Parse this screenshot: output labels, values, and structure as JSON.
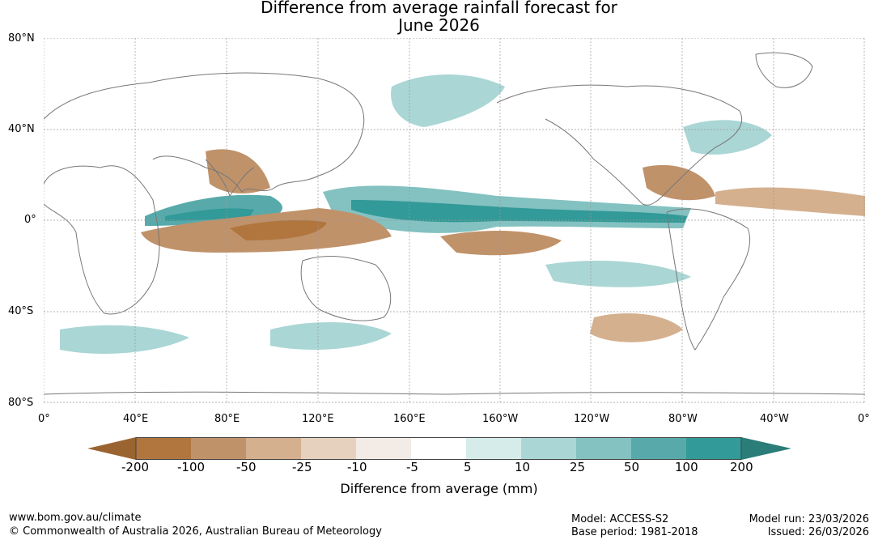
{
  "title": {
    "line1": "Difference from average rainfall forecast for",
    "line2": "June 2026"
  },
  "latitude_labels": [
    "80°N",
    "40°N",
    "0°",
    "40°S",
    "80°S"
  ],
  "longitude_labels": [
    "0°",
    "40°E",
    "80°E",
    "120°E",
    "160°E",
    "160°W",
    "120°W",
    "80°W",
    "40°W",
    "0°"
  ],
  "colorbar": {
    "labels": [
      "-200",
      "-100",
      "-50",
      "-25",
      "-10",
      "-5",
      "5",
      "10",
      "25",
      "50",
      "100",
      "200"
    ],
    "colors": [
      "#9a6430",
      "#b0763e",
      "#c0926a",
      "#d4b08f",
      "#e6d1bf",
      "#f2ebe6",
      "#ffffff",
      "#d6ecea",
      "#aad6d5",
      "#84c1c1",
      "#58aaaa",
      "#329a98",
      "#2a7d79"
    ],
    "title": "Difference from average (mm)"
  },
  "palette": {
    "land_outline": "#777777",
    "grid": "#999999"
  },
  "footer": {
    "website": "www.bom.gov.au/climate",
    "copyright": "© Commonwealth of Australia 2026, Australian Bureau of Meteorology",
    "model": "Model: ACCESS-S2",
    "base_period": "Base period: 1981-2018",
    "model_run": "Model run: 23/03/2026",
    "issued": "Issued: 26/03/2026"
  }
}
